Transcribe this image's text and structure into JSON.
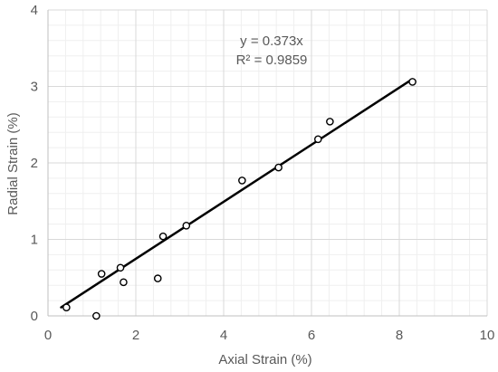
{
  "chart_data": {
    "type": "scatter",
    "title": "",
    "xlabel": "Axial Strain (%)",
    "ylabel": "Radial Strain (%)",
    "xlim": [
      0,
      10
    ],
    "ylim": [
      0,
      4
    ],
    "x_major_ticks": [
      0,
      2,
      4,
      6,
      8,
      10
    ],
    "y_major_ticks": [
      0,
      1,
      2,
      3,
      4
    ],
    "x_minor_step": 0.4,
    "y_minor_step": 0.2,
    "x_tick_labels": [
      "0",
      "2",
      "4",
      "6",
      "8",
      "10"
    ],
    "y_tick_labels": [
      "0",
      "1",
      "2",
      "3",
      "4"
    ],
    "grid": true,
    "legend": "none",
    "series": [
      {
        "marker": "open-circle",
        "points": [
          {
            "x": 0.42,
            "y": 0.11
          },
          {
            "x": 1.1,
            "y": 0.0
          },
          {
            "x": 1.22,
            "y": 0.55
          },
          {
            "x": 1.65,
            "y": 0.63
          },
          {
            "x": 1.72,
            "y": 0.44
          },
          {
            "x": 2.5,
            "y": 0.49
          },
          {
            "x": 2.62,
            "y": 1.04
          },
          {
            "x": 3.15,
            "y": 1.18
          },
          {
            "x": 4.42,
            "y": 1.77
          },
          {
            "x": 5.25,
            "y": 1.94
          },
          {
            "x": 6.15,
            "y": 2.31
          },
          {
            "x": 6.42,
            "y": 2.54
          },
          {
            "x": 8.3,
            "y": 3.06
          }
        ]
      }
    ],
    "trendline": {
      "slope": 0.373,
      "x_range": [
        0.3,
        8.25
      ],
      "equation_label": "y = 0.373x",
      "r2_label": "R² = 0.9859"
    },
    "colors": {
      "axis": "#bfbfbf",
      "major_grid": "#d9d9d9",
      "minor_grid": "#efefef",
      "marker": "#000000",
      "trendline": "#000000",
      "text": "#595959"
    }
  }
}
